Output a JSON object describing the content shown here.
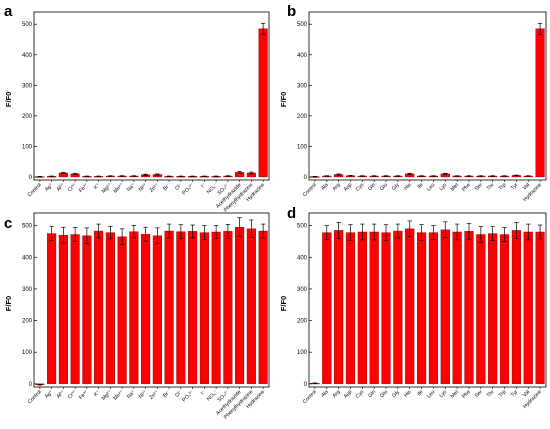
{
  "chart_data": [
    {
      "type": "bar",
      "panel_label": "a",
      "ylabel": "F/F0",
      "ylim": [
        -10,
        540
      ],
      "yticks": [
        0,
        100,
        200,
        300,
        400,
        500
      ],
      "bar_color": "#ff0000",
      "categories": [
        "Control",
        "Ag+",
        "Al3+",
        "Cr3+",
        "Fe3+",
        "K+",
        "Mg2+",
        "Mn2+",
        "Na+",
        "Ni2+",
        "Zn2+",
        "Br-",
        "Cl-",
        "PO4 3-",
        "I-",
        "NO3-",
        "SO4 2-",
        "Acethydrazide",
        "Phenylhydrazine",
        "Hydrazine"
      ],
      "category_labels": [
        "Control",
        "Ag⁺",
        "Al³⁺",
        "Cr³⁺",
        "Fe³⁺",
        "K⁺",
        "Mg²⁺",
        "Mn²⁺",
        "Na⁺",
        "Ni²⁺",
        "Zn²⁺",
        "Br⁻",
        "Cl⁻",
        "PO₄³⁻",
        "I⁻",
        "NO₃⁻",
        "SO₄²⁻",
        "Acethydrazide",
        "Phenylhydrazine",
        "Hydrazine"
      ],
      "values": [
        1,
        2,
        13,
        10,
        2,
        2,
        3,
        3,
        3,
        7,
        8,
        2,
        2,
        2,
        2,
        2,
        3,
        15,
        13,
        485
      ],
      "errors": [
        1,
        1,
        2,
        2,
        1,
        1,
        1,
        1,
        1,
        2,
        2,
        1,
        1,
        1,
        1,
        1,
        1,
        3,
        3,
        18
      ]
    },
    {
      "type": "bar",
      "panel_label": "b",
      "ylabel": "F/F0",
      "ylim": [
        -10,
        540
      ],
      "yticks": [
        0,
        100,
        200,
        300,
        400,
        500
      ],
      "bar_color": "#ff0000",
      "categories": [
        "Control",
        "Ala",
        "Arg",
        "Asp",
        "Cys",
        "Gln",
        "Glu",
        "Gly",
        "His",
        "Ile",
        "Leu",
        "Lys",
        "Met",
        "Phe",
        "Ser",
        "Thr",
        "Trp",
        "Tyr",
        "Val",
        "Hydrazine"
      ],
      "category_labels": [
        "Control",
        "Ala",
        "Arg",
        "Asp",
        "Cys",
        "Gln",
        "Glu",
        "Gly",
        "His",
        "Ile",
        "Leu",
        "Lys",
        "Met",
        "Phe",
        "Ser",
        "Thr",
        "Trp",
        "Tyr",
        "Val",
        "Hydrazine"
      ],
      "values": [
        1,
        3,
        8,
        4,
        3,
        3,
        3,
        3,
        10,
        3,
        3,
        10,
        3,
        3,
        3,
        3,
        3,
        5,
        3,
        485
      ],
      "errors": [
        1,
        1,
        2,
        1,
        1,
        1,
        1,
        1,
        2,
        1,
        1,
        2,
        1,
        1,
        1,
        1,
        1,
        1,
        1,
        18
      ]
    },
    {
      "type": "bar",
      "panel_label": "c",
      "ylabel": "F/F0",
      "ylim": [
        -10,
        540
      ],
      "yticks": [
        0,
        100,
        200,
        300,
        400,
        500
      ],
      "bar_color": "#ff0000",
      "categories": [
        "Control",
        "Ag+",
        "Al3+",
        "Cr3+",
        "Fe3+",
        "K+",
        "Mg2+",
        "Mn2+",
        "Na+",
        "Ni2+",
        "Zn2+",
        "Br-",
        "Cl-",
        "PO4 3-",
        "I-",
        "NO3-",
        "SO4 2-",
        "Acethydrazide",
        "Phenylhydrazine",
        "Hydrazine"
      ],
      "category_labels": [
        "Control",
        "Ag⁺",
        "Al³⁺",
        "Cr³⁺",
        "Fe³⁺",
        "K⁺",
        "Mg²⁺",
        "Mn²⁺",
        "Na⁺",
        "Ni²⁺",
        "Zn²⁺",
        "Br⁻",
        "Cl⁻",
        "PO₄³⁻",
        "I⁻",
        "NO₃⁻",
        "SO₄²⁻",
        "Acethydrazide",
        "Phenylhydrazine",
        "Hydrazine"
      ],
      "values": [
        -3,
        475,
        470,
        472,
        468,
        483,
        478,
        465,
        481,
        473,
        468,
        483,
        481,
        482,
        478,
        480,
        482,
        495,
        490,
        483
      ],
      "errors": [
        1,
        22,
        25,
        22,
        25,
        22,
        20,
        25,
        20,
        22,
        25,
        22,
        22,
        20,
        22,
        20,
        22,
        30,
        28,
        22
      ]
    },
    {
      "type": "bar",
      "panel_label": "d",
      "ylabel": "F/F0",
      "ylim": [
        -10,
        540
      ],
      "yticks": [
        0,
        100,
        200,
        300,
        400,
        500
      ],
      "bar_color": "#ff0000",
      "categories": [
        "Control",
        "Ala",
        "Arg",
        "Asp",
        "Cys",
        "Gln",
        "Glu",
        "Gly",
        "His",
        "Ile",
        "Leu",
        "Lys",
        "Met",
        "Phe",
        "Ser",
        "Thr",
        "Trp",
        "Tyr",
        "Val",
        "Hydrazine"
      ],
      "category_labels": [
        "Control",
        "Ala",
        "Arg",
        "Asp",
        "Cys",
        "Gln",
        "Glu",
        "Gly",
        "His",
        "Ile",
        "Leu",
        "Lys",
        "Met",
        "Phe",
        "Ser",
        "Thr",
        "Trp",
        "Tyr",
        "Val",
        "Hydrazine"
      ],
      "values": [
        2,
        478,
        485,
        478,
        480,
        480,
        478,
        483,
        490,
        478,
        478,
        487,
        480,
        482,
        472,
        475,
        472,
        485,
        480,
        480
      ],
      "errors": [
        1,
        22,
        25,
        25,
        25,
        25,
        25,
        22,
        25,
        25,
        22,
        25,
        25,
        25,
        25,
        22,
        22,
        25,
        25,
        22
      ]
    }
  ]
}
